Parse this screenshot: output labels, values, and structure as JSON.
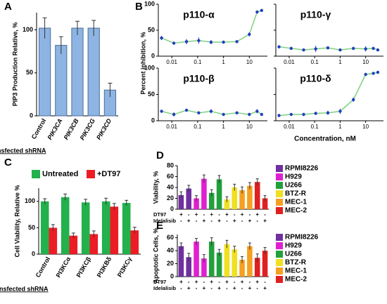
{
  "chart_data": [
    {
      "type": "bar",
      "panel": "A",
      "ylabel": "PIP3 Production Relative, %",
      "xlabel": "Transfected shRNA",
      "categories": [
        "Control",
        "PIK3CA",
        "PIK3CB",
        "PIK3CG",
        "PIK3CD"
      ],
      "values": [
        102,
        82,
        102,
        102,
        30
      ],
      "errors": [
        12,
        10,
        8,
        9,
        8
      ],
      "color": "#8db4e2",
      "ylim": [
        0,
        120
      ],
      "yticks": [
        0,
        50,
        100
      ]
    },
    {
      "type": "scatter",
      "panel": "B",
      "title": "p110-α",
      "ylabel": "Percent inhibition, %",
      "xlabel": "Concentration, nM",
      "x": [
        0.004,
        0.012,
        0.037,
        0.11,
        0.33,
        1,
        3.3,
        10,
        20,
        30
      ],
      "values": [
        35,
        25,
        28,
        30,
        27,
        27,
        28,
        42,
        85,
        88
      ],
      "errors": [
        4,
        3,
        5,
        6,
        4,
        3,
        3,
        4,
        3,
        2
      ],
      "xscale": "log",
      "xlim": [
        0.003,
        50
      ],
      "xticks": [
        0.01,
        0.1,
        1,
        10
      ],
      "ylim": [
        0,
        100
      ],
      "yticks": [
        0,
        50,
        100
      ],
      "color": "#1f3fbf",
      "fit_color": "#7fd17f"
    },
    {
      "type": "scatter",
      "title": "p110-γ",
      "x": [
        0.004,
        0.012,
        0.037,
        0.11,
        0.33,
        1,
        3.3,
        10,
        20,
        30
      ],
      "values": [
        18,
        15,
        12,
        14,
        16,
        12,
        15,
        14,
        15,
        12
      ],
      "errors": [
        3,
        3,
        2,
        6,
        3,
        2,
        3,
        5,
        3,
        2
      ],
      "xscale": "log",
      "xlim": [
        0.003,
        50
      ],
      "xticks": [
        0.01,
        0.1,
        1,
        10
      ],
      "ylim": [
        0,
        100
      ],
      "yticks": [
        0,
        50,
        100
      ],
      "color": "#1f3fbf",
      "fit_color": "#7fd17f"
    },
    {
      "type": "scatter",
      "title": "p110-β",
      "x": [
        0.004,
        0.012,
        0.037,
        0.11,
        0.33,
        1,
        3.3,
        10,
        20,
        30
      ],
      "values": [
        18,
        12,
        20,
        15,
        18,
        12,
        15,
        12,
        18,
        12
      ],
      "errors": [
        3,
        4,
        3,
        3,
        4,
        2,
        3,
        3,
        4,
        2
      ],
      "xscale": "log",
      "xlim": [
        0.003,
        50
      ],
      "xticks": [
        0.01,
        0.1,
        1,
        10
      ],
      "ylim": [
        0,
        100
      ],
      "yticks": [
        0,
        50,
        100
      ],
      "color": "#1f3fbf",
      "fit_color": "#7fd17f"
    },
    {
      "type": "scatter",
      "title": "p110-δ",
      "x": [
        0.004,
        0.012,
        0.037,
        0.11,
        0.33,
        1,
        3.3,
        10,
        20,
        30
      ],
      "values": [
        10,
        12,
        12,
        14,
        15,
        18,
        40,
        88,
        90,
        92
      ],
      "errors": [
        3,
        2,
        3,
        3,
        4,
        5,
        4,
        3,
        2,
        2
      ],
      "xscale": "log",
      "xlim": [
        0.003,
        50
      ],
      "xticks": [
        0.01,
        0.1,
        1,
        10
      ],
      "ylim": [
        0,
        100
      ],
      "yticks": [
        0,
        50,
        100
      ],
      "color": "#1f3fbf",
      "fit_color": "#7fd17f"
    },
    {
      "type": "grouped-bar",
      "panel": "C",
      "ylabel": "Cell Viability, Relative %",
      "xlabel": "Transfected shRNA",
      "categories": [
        "Control",
        "PI3KCα",
        "PI3KCβ",
        "PI3KBδ",
        "PI3KCγ"
      ],
      "series": [
        {
          "name": "Untreated",
          "color": "#22b14c",
          "values": [
            100,
            108,
            98,
            100,
            97
          ],
          "errors": [
            5,
            6,
            6,
            6,
            5
          ]
        },
        {
          "name": "+DT97",
          "color": "#ed1c24",
          "values": [
            50,
            35,
            38,
            90,
            45
          ],
          "errors": [
            6,
            5,
            6,
            6,
            6
          ]
        }
      ],
      "ylim": [
        0,
        125
      ],
      "yticks": [
        0,
        50,
        100
      ],
      "legend": "top"
    },
    {
      "type": "cluster-bar",
      "panel": "D",
      "ylabel": "Viability, %",
      "series": [
        {
          "name": "RPMI8226",
          "color": "#7030a0",
          "values": [
            26,
            38
          ],
          "errors": [
            6,
            6
          ]
        },
        {
          "name": "H929",
          "color": "#e020d0",
          "values": [
            20,
            56
          ],
          "errors": [
            5,
            7
          ]
        },
        {
          "name": "U266",
          "color": "#22a03c",
          "values": [
            30,
            55
          ],
          "errors": [
            6,
            7
          ]
        },
        {
          "name": "BTZ-R",
          "color": "#f0e020",
          "values": [
            18,
            40
          ],
          "errors": [
            5,
            6
          ]
        },
        {
          "name": "MEC-1",
          "color": "#f5a020",
          "values": [
            35,
            43
          ],
          "errors": [
            6,
            6
          ]
        },
        {
          "name": "MEC-2",
          "color": "#e02020",
          "values": [
            50,
            20
          ],
          "errors": [
            6,
            5
          ]
        }
      ],
      "conditions": [
        {
          "name": "DT97",
          "marks": [
            "+",
            "-",
            "+",
            "-",
            "+",
            "-",
            "+",
            "-",
            "+",
            "-",
            "+",
            "-"
          ]
        },
        {
          "name": "Idelalisib",
          "marks": [
            "-",
            "+",
            "-",
            "+",
            "-",
            "+",
            "-",
            "+",
            "-",
            "+",
            "-",
            "+"
          ]
        }
      ],
      "ylim": [
        0,
        80
      ],
      "yticks": [
        0,
        20,
        40,
        60,
        80
      ],
      "legend": "right"
    },
    {
      "type": "cluster-bar",
      "panel": "E",
      "ylabel": "Apoptotic Cells, %",
      "series": [
        {
          "name": "RPMI8226",
          "color": "#7030a0",
          "values": [
            47,
            30
          ],
          "errors": [
            5,
            6
          ]
        },
        {
          "name": "H929",
          "color": "#e020d0",
          "values": [
            54,
            28
          ],
          "errors": [
            5,
            6
          ]
        },
        {
          "name": "U266",
          "color": "#22a03c",
          "values": [
            54,
            37
          ],
          "errors": [
            6,
            5
          ]
        },
        {
          "name": "BTZ-R",
          "color": "#f0e020",
          "values": [
            50,
            42
          ],
          "errors": [
            6,
            5
          ]
        },
        {
          "name": "MEC-1",
          "color": "#f5a020",
          "values": [
            26,
            47
          ],
          "errors": [
            5,
            5
          ]
        },
        {
          "name": "MEC-2",
          "color": "#e02020",
          "values": [
            29,
            40
          ],
          "errors": [
            6,
            5
          ]
        }
      ],
      "conditions": [
        {
          "name": "DT97",
          "marks": [
            "+",
            "-",
            "+",
            "-",
            "+",
            "-",
            "+",
            "-",
            "+",
            "-",
            "+",
            "-"
          ]
        },
        {
          "name": "Idelalisib",
          "marks": [
            "-",
            "+",
            "-",
            "+",
            "-",
            "+",
            "-",
            "+",
            "-",
            "+",
            "-",
            "+"
          ]
        }
      ],
      "ylim": [
        0,
        65
      ],
      "yticks": [
        0,
        20,
        40,
        60
      ],
      "legend": "right"
    }
  ]
}
